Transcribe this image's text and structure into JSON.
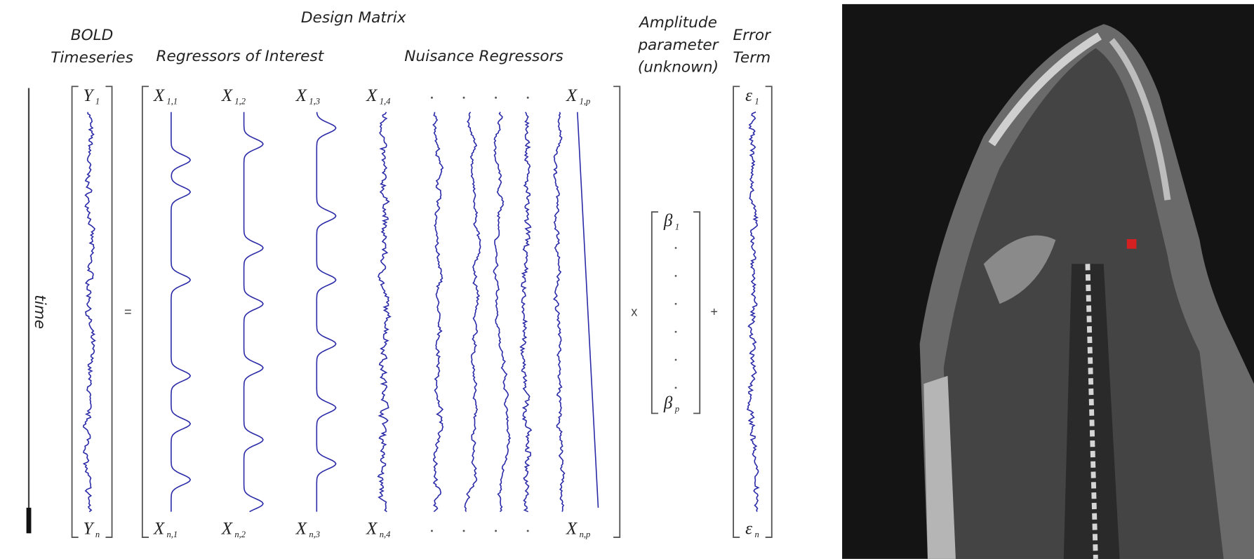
{
  "headings": {
    "design_matrix": "Design Matrix",
    "bold": [
      "BOLD",
      "Timeseries"
    ],
    "interest": "Regressors of Interest",
    "nuisance": "Nuisance Regressors",
    "amplitude": [
      "Amplitude",
      "parameter",
      "(unknown)"
    ],
    "error": [
      "Error",
      "Term"
    ],
    "time": "time"
  },
  "operators": {
    "equals": "=",
    "times": "x",
    "plus": "+"
  },
  "bold": {
    "first": {
      "main": "Y",
      "sub": "1"
    },
    "last": {
      "main": "Y",
      "sub": "n"
    }
  },
  "design_matrix": {
    "first_row": [
      {
        "main": "X",
        "sub": "1,1"
      },
      {
        "main": "X",
        "sub": "1,2"
      },
      {
        "main": "X",
        "sub": "1,3"
      },
      {
        "main": "X",
        "sub": "1,4"
      },
      {
        "main": "X",
        "sub": "1,p"
      }
    ],
    "last_row": [
      {
        "main": "X",
        "sub": "n,1"
      },
      {
        "main": "X",
        "sub": "n,2"
      },
      {
        "main": "X",
        "sub": "n,3"
      },
      {
        "main": "X",
        "sub": "n,4"
      },
      {
        "main": "X",
        "sub": "n,p"
      }
    ]
  },
  "beta": {
    "first": {
      "main": "β",
      "sub": "1"
    },
    "last": {
      "main": "β",
      "sub": "p"
    }
  },
  "error": {
    "first": {
      "main": "ε",
      "sub": "1"
    },
    "last": {
      "main": "ε",
      "sub": "n"
    }
  }
}
